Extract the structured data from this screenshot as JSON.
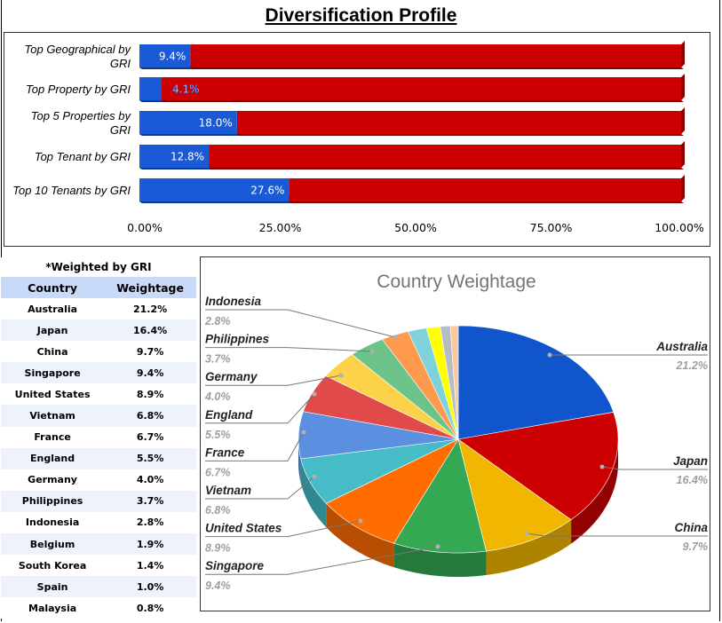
{
  "page": {
    "title": "Diversification Profile"
  },
  "bar_chart": {
    "type": "bar",
    "orientation": "horizontal",
    "stacked": true,
    "categories": [
      "Top Geographical by GRI",
      "Top Property by GRI",
      "Top 5 Properties by GRI",
      "Top Tenant by GRI",
      "Top 10 Tenants by GRI"
    ],
    "category_lines": [
      [
        "Top Geographical by",
        "GRI"
      ],
      [
        "Top Property by GRI"
      ],
      [
        "Top 5 Properties by",
        "GRI"
      ],
      [
        "Top Tenant by GRI"
      ],
      [
        "Top 10 Tenants by GRI"
      ]
    ],
    "values": [
      9.4,
      4.1,
      18.0,
      12.8,
      27.6
    ],
    "value_labels": [
      "9.4%",
      "4.1%",
      "18.0%",
      "12.8%",
      "27.6%"
    ],
    "xlim": [
      0,
      100
    ],
    "xticks": [
      "0.00%",
      "25.00%",
      "50.00%",
      "75.00%",
      "100.00%"
    ],
    "colors": {
      "primary": "#1a5ad6",
      "primary_dark": "#0f3a8f",
      "remainder": "#cc0000",
      "remainder_dark": "#880000"
    }
  },
  "table": {
    "caption": "*Weighted by GRI",
    "headers": [
      "Country",
      "Weightage"
    ],
    "rows": [
      [
        "Australia",
        "21.2%"
      ],
      [
        "Japan",
        "16.4%"
      ],
      [
        "China",
        "9.7%"
      ],
      [
        "Singapore",
        "9.4%"
      ],
      [
        "United States",
        "8.9%"
      ],
      [
        "Vietnam",
        "6.8%"
      ],
      [
        "France",
        "6.7%"
      ],
      [
        "England",
        "5.5%"
      ],
      [
        "Germany",
        "4.0%"
      ],
      [
        "Philippines",
        "3.7%"
      ],
      [
        "Indonesia",
        "2.8%"
      ],
      [
        "Belgium",
        "1.9%"
      ],
      [
        "South Korea",
        "1.4%"
      ],
      [
        "Spain",
        "1.0%"
      ],
      [
        "Malaysia",
        "0.8%"
      ]
    ]
  },
  "chart_data": {
    "type": "pie",
    "title": "Country Weightage",
    "labels": [
      "Australia",
      "Japan",
      "China",
      "Singapore",
      "United States",
      "Vietnam",
      "France",
      "England",
      "Germany",
      "Philippines",
      "Indonesia",
      "Belgium",
      "South Korea",
      "Spain",
      "Malaysia"
    ],
    "values": [
      21.2,
      16.4,
      9.7,
      9.4,
      8.9,
      6.8,
      6.7,
      5.5,
      4.0,
      3.7,
      2.8,
      1.9,
      1.4,
      1.0,
      0.8
    ],
    "value_labels": [
      "21.2%",
      "16.4%",
      "9.7%",
      "9.4%",
      "8.9%",
      "6.8%",
      "6.7%",
      "5.5%",
      "4.0%",
      "3.7%",
      "2.8%",
      "",
      "",
      "",
      ""
    ],
    "colors": [
      "#1155cc",
      "#cc0000",
      "#f1b600",
      "#34a853",
      "#ff6d01",
      "#46bdc6",
      "#5b8fdf",
      "#e04a4a",
      "#fbd249",
      "#6cc38a",
      "#ff994d",
      "#7fd2d9",
      "#ffff00",
      "#b4bcc6",
      "#f9cb9c"
    ],
    "callouts": {
      "right": [
        "Australia",
        "Japan",
        "China"
      ],
      "left": [
        "Indonesia",
        "Philippines",
        "Germany",
        "England",
        "France",
        "Vietnam",
        "United States",
        "Singapore"
      ]
    },
    "legend": "none",
    "view": "3d"
  }
}
